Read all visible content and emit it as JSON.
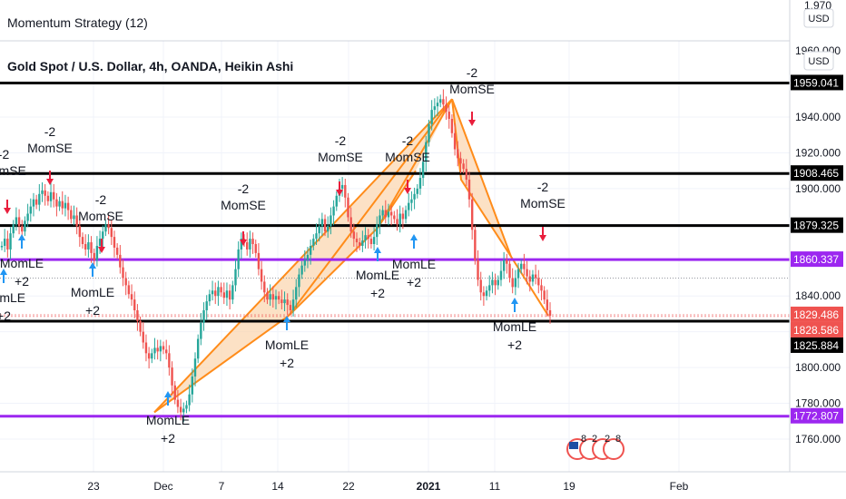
{
  "indicator_title": "Momentum Strategy (12)",
  "symbol_title": "Gold Spot / U.S. Dollar, 4h, OANDA, Heikin Ashi",
  "currency": "USD",
  "colors": {
    "up": "#26a69a",
    "down": "#ef5350",
    "arrow_up": "#2196f3",
    "arrow_down": "#e91e3c",
    "pattern": "#ff8c1a",
    "pattern_fill": "#fbd7b2",
    "level_black": "#000000",
    "level_purple": "#9c27f0"
  },
  "chart_data": {
    "type": "candlestick",
    "ylim": [
      1752,
      1972
    ],
    "y_ticks": [
      1760,
      1780,
      1800,
      1820,
      1840,
      1860,
      1880,
      1900,
      1920,
      1940
    ],
    "y_tick_labels": [
      "1760.000",
      "1780.000",
      "1800.000",
      "1820.000",
      "1840.000",
      "1860.000",
      "1880.000",
      "1900.000",
      "1920.000",
      "1940.000"
    ],
    "y_top_partial_labels": [
      "1,970",
      "1960.000"
    ],
    "x_tick_labels": [
      "23",
      "Dec",
      "7",
      "14",
      "22",
      "2021",
      "11",
      "19",
      "Feb"
    ],
    "price_labels": [
      {
        "value": 1959.041,
        "label": "1959.041",
        "color": "#000000"
      },
      {
        "value": 1908.465,
        "label": "1908.465",
        "color": "#000000"
      },
      {
        "value": 1879.325,
        "label": "1879.325",
        "color": "#000000"
      },
      {
        "value": 1860.337,
        "label": "1860.337",
        "color": "#9c27f0"
      },
      {
        "value": 1829.486,
        "label": "1829.486",
        "color": "#ef5350"
      },
      {
        "value": 1828.586,
        "label": "1828.586",
        "color": "#ef5350"
      },
      {
        "value": 1825.884,
        "label": "1825.884",
        "color": "#000000"
      },
      {
        "value": 1772.807,
        "label": "1772.807",
        "color": "#9c27f0"
      }
    ],
    "signals": [
      {
        "type": "MomSE",
        "value": "-2"
      },
      {
        "type": "MomSE",
        "value": "-2"
      },
      {
        "type": "MomSE",
        "value": "-2"
      },
      {
        "type": "MomSE",
        "value": "-2"
      },
      {
        "type": "MomSE",
        "value": "-2"
      },
      {
        "type": "MomSE",
        "value": "-2"
      },
      {
        "type": "MomSE",
        "value": "-2"
      },
      {
        "type": "MomSE",
        "value": "-2"
      },
      {
        "type": "MomLE",
        "value": "+2"
      },
      {
        "type": "MomLE",
        "value": "+2"
      },
      {
        "type": "MomLE",
        "value": "+2"
      },
      {
        "type": "MomLE",
        "value": "+2"
      },
      {
        "type": "MomLE",
        "value": "+2"
      },
      {
        "type": "MomLE",
        "value": "+2"
      },
      {
        "type": "MomLE",
        "value": "+2"
      },
      {
        "type": "MomLE",
        "value": "+2"
      }
    ],
    "harmonic_patterns": [
      {
        "name": "bullish",
        "points": [
          1775,
          1829,
          1950,
          1878,
          1910
        ]
      },
      {
        "name": "bearish",
        "points": [
          1950,
          1905,
          1862,
          1829
        ]
      }
    ],
    "series": [
      {
        "name": "",
        "values": [
          1868,
          1872,
          1866,
          1875,
          1880,
          1884,
          1879,
          1876,
          1882,
          1886,
          1890,
          1894,
          1891,
          1897,
          1899,
          1896,
          1893,
          1898,
          1894,
          1890,
          1893,
          1889,
          1892,
          1888,
          1883,
          1885,
          1879,
          1873,
          1869,
          1866,
          1870,
          1864,
          1860,
          1868,
          1872,
          1876,
          1880,
          1878,
          1873,
          1867,
          1863,
          1856,
          1850,
          1846,
          1841,
          1838,
          1832,
          1826,
          1820,
          1814,
          1808,
          1805,
          1808,
          1811,
          1809,
          1812,
          1810,
          1808,
          1800,
          1790,
          1782,
          1778,
          1775,
          1777,
          1779,
          1785,
          1795,
          1805,
          1816,
          1825,
          1832,
          1837,
          1841,
          1843,
          1840,
          1845,
          1842,
          1839,
          1843,
          1838,
          1846,
          1855,
          1866,
          1872,
          1870,
          1866,
          1872,
          1869,
          1864,
          1855,
          1848,
          1842,
          1838,
          1841,
          1838,
          1840,
          1838,
          1836,
          1838,
          1835,
          1832,
          1838,
          1845,
          1852,
          1857,
          1860,
          1863,
          1868,
          1872,
          1875,
          1879,
          1883,
          1876,
          1879,
          1885,
          1890,
          1896,
          1900,
          1902,
          1895,
          1884,
          1876,
          1872,
          1870,
          1868,
          1871,
          1874,
          1872,
          1869,
          1873,
          1880,
          1885,
          1888,
          1884,
          1887,
          1885,
          1883,
          1880,
          1886,
          1883,
          1888,
          1892,
          1894,
          1897,
          1900,
          1906,
          1915,
          1926,
          1936,
          1944,
          1946,
          1948,
          1950,
          1947,
          1943,
          1939,
          1931,
          1922,
          1917,
          1914,
          1911,
          1905,
          1894,
          1877,
          1860,
          1849,
          1842,
          1840,
          1843,
          1846,
          1849,
          1846,
          1849,
          1854,
          1860,
          1858,
          1850,
          1845,
          1850,
          1855,
          1858,
          1855,
          1851,
          1848,
          1852,
          1850,
          1846,
          1843,
          1838,
          1832,
          1829
        ]
      }
    ]
  }
}
